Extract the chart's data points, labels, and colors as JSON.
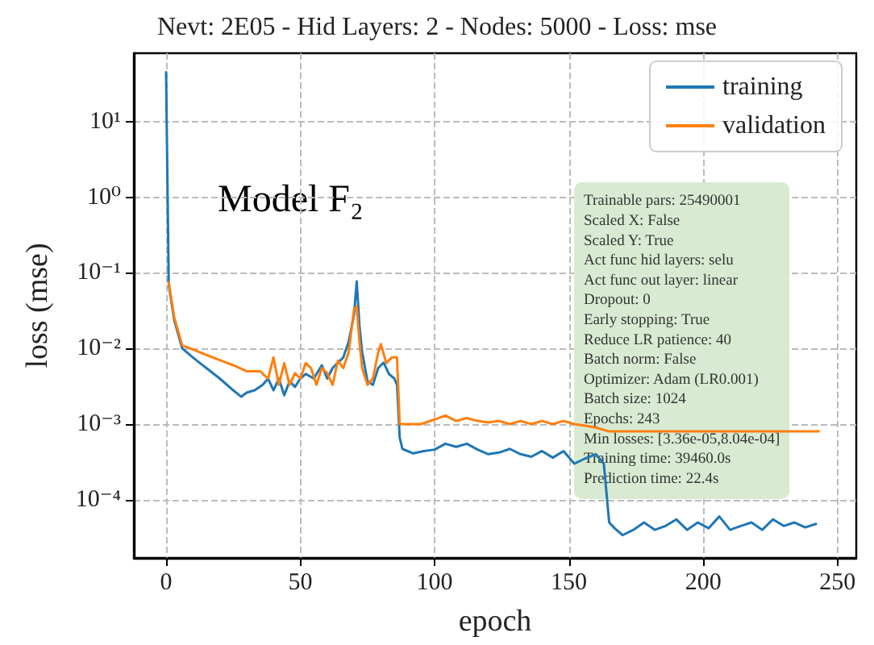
{
  "chart_data": {
    "type": "line",
    "title": "Nevt: 2E05 - Hid Layers: 2 - Nodes: 5000 - Loss: mse",
    "xlabel": "epoch",
    "ylabel": "loss (mse)",
    "series": [
      {
        "name": "training",
        "color": "#1f77b4",
        "x": [
          0,
          1,
          3,
          6,
          10,
          15,
          20,
          25,
          28,
          30,
          33,
          36,
          38,
          40,
          42,
          44,
          46,
          48,
          50,
          52,
          55,
          58,
          60,
          62,
          64,
          66,
          68,
          70,
          71,
          72,
          73,
          75,
          77,
          79,
          81,
          83,
          85,
          86,
          87,
          88,
          92,
          96,
          100,
          104,
          108,
          112,
          116,
          120,
          124,
          128,
          132,
          136,
          140,
          144,
          148,
          152,
          156,
          160,
          163,
          165,
          167,
          170,
          174,
          178,
          182,
          186,
          190,
          194,
          198,
          202,
          206,
          210,
          214,
          218,
          222,
          226,
          230,
          234,
          238,
          242
        ],
        "values": [
          45,
          0.07,
          0.024,
          0.01,
          0.0076,
          0.0055,
          0.004,
          0.0028,
          0.0023,
          0.0026,
          0.0028,
          0.0033,
          0.004,
          0.0028,
          0.004,
          0.0024,
          0.0037,
          0.0031,
          0.004,
          0.0046,
          0.004,
          0.006,
          0.004,
          0.0055,
          0.0065,
          0.0076,
          0.0123,
          0.028,
          0.077,
          0.02,
          0.009,
          0.0037,
          0.0033,
          0.0055,
          0.0065,
          0.0046,
          0.004,
          0.0033,
          0.00066,
          0.00047,
          0.00041,
          0.00044,
          0.00046,
          0.00055,
          0.0005,
          0.00055,
          0.00046,
          0.0004,
          0.00042,
          0.00047,
          0.0004,
          0.00037,
          0.00044,
          0.00036,
          0.00044,
          0.0003,
          0.00035,
          0.0004,
          0.0003,
          5e-05,
          4.2e-05,
          3.4e-05,
          4e-05,
          5e-05,
          4e-05,
          4.5e-05,
          5.5e-05,
          4e-05,
          5e-05,
          4.2e-05,
          6e-05,
          4e-05,
          4.5e-05,
          5e-05,
          4e-05,
          5.5e-05,
          4.5e-05,
          5e-05,
          4.3e-05,
          4.8e-05
        ]
      },
      {
        "name": "validation",
        "color": "#ff7f0e",
        "x": [
          1,
          3,
          6,
          10,
          15,
          20,
          25,
          30,
          35,
          38,
          40,
          42,
          44,
          46,
          48,
          50,
          52,
          54,
          56,
          58,
          60,
          62,
          64,
          66,
          68,
          70,
          71,
          72,
          73,
          75,
          77,
          79,
          80,
          82,
          84,
          86,
          87,
          90,
          95,
          100,
          104,
          108,
          112,
          116,
          120,
          124,
          128,
          132,
          136,
          140,
          144,
          148,
          152,
          156,
          160,
          165,
          170,
          180,
          190,
          200,
          210,
          220,
          230,
          243
        ],
        "values": [
          0.075,
          0.026,
          0.011,
          0.0097,
          0.0082,
          0.007,
          0.006,
          0.005,
          0.005,
          0.004,
          0.0076,
          0.0033,
          0.0064,
          0.0033,
          0.0047,
          0.004,
          0.0064,
          0.0055,
          0.0033,
          0.0055,
          0.0047,
          0.0033,
          0.0069,
          0.0055,
          0.0089,
          0.033,
          0.036,
          0.0123,
          0.0055,
          0.0033,
          0.004,
          0.0089,
          0.0114,
          0.0064,
          0.0076,
          0.0076,
          0.001,
          0.001,
          0.001,
          0.00115,
          0.0013,
          0.0011,
          0.0012,
          0.0011,
          0.00105,
          0.0011,
          0.001,
          0.0011,
          0.001,
          0.0011,
          0.001,
          0.0011,
          0.001,
          0.00095,
          0.0009,
          0.0008,
          0.0008,
          0.0008,
          0.0008,
          0.0008,
          0.0008,
          0.0008,
          0.0008,
          0.0008
        ]
      }
    ],
    "log": "y",
    "xlim": [
      -12,
      257
    ],
    "xticks": [
      0,
      50,
      100,
      150,
      200,
      250
    ],
    "ylim": [
      1.7e-05,
      80
    ],
    "yticks": [
      {
        "value": 0.0001,
        "label": "10⁻⁴"
      },
      {
        "value": 0.001,
        "label": "10⁻³"
      },
      {
        "value": 0.01,
        "label": "10⁻²"
      },
      {
        "value": 0.1,
        "label": "10⁻¹"
      },
      {
        "value": 1,
        "label": "10⁰"
      },
      {
        "value": 10,
        "label": "10¹"
      }
    ],
    "grid": true,
    "legend": "top right",
    "line_style": "solid",
    "marker": "none",
    "annotations": [
      "Model F₂",
      "Trainable pars: 25490001",
      "Scaled X: False",
      "Scaled Y: True",
      "Act func hid layers: selu",
      "Act func out layer: linear",
      "Dropout: 0",
      "Early stopping: True",
      "Reduce LR patience: 40",
      "Batch norm: False",
      "Optimizer: Adam (LR0.001)",
      "Batch size: 1024",
      "Epochs: 243",
      "Min losses: [3.36e-05,8.04e-04]",
      "Training time: 39460.0s",
      "Prediction time: 22.4s"
    ]
  }
}
